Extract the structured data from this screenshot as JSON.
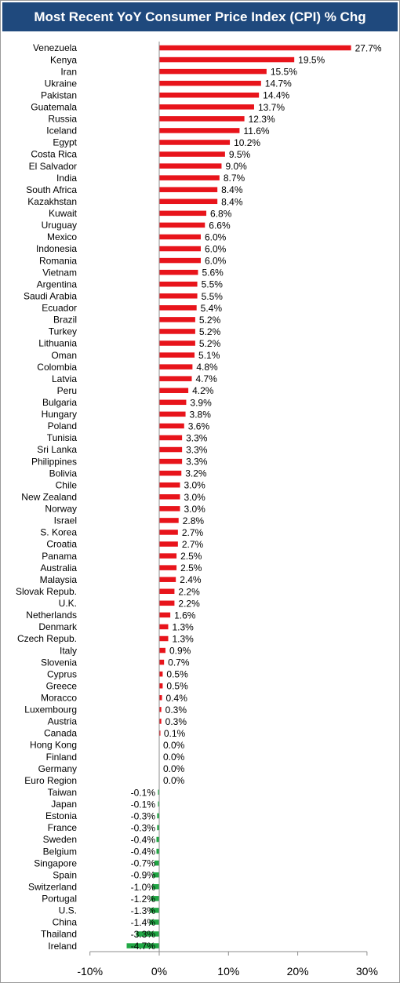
{
  "chart_data": {
    "type": "bar",
    "orientation": "horizontal",
    "title": "Most Recent YoY Consumer Price Index (CPI) % Chg",
    "xlim": [
      -10,
      30
    ],
    "xticks": [
      -10,
      0,
      10,
      20,
      30
    ],
    "xtick_labels": [
      "-10%",
      "0%",
      "10%",
      "20%",
      "30%"
    ],
    "grid": false,
    "colors": {
      "positive": "#e8141b",
      "negative": "#21a845",
      "title_bg": "#1f497d"
    },
    "categories": [
      "Venezuela",
      "Kenya",
      "Iran",
      "Ukraine",
      "Pakistan",
      "Guatemala",
      "Russia",
      "Iceland",
      "Egypt",
      "Costa Rica",
      "El Salvador",
      "India",
      "South Africa",
      "Kazakhstan",
      "Kuwait",
      "Uruguay",
      "Mexico",
      "Indonesia",
      "Romania",
      "Vietnam",
      "Argentina",
      "Saudi Arabia",
      "Ecuador",
      "Brazil",
      "Turkey",
      "Lithuania",
      "Oman",
      "Colombia",
      "Latvia",
      "Peru",
      "Bulgaria",
      "Hungary",
      "Poland",
      "Tunisia",
      "Sri Lanka",
      "Philippines",
      "Bolivia",
      "Chile",
      "New Zealand",
      "Norway",
      "Israel",
      "S. Korea",
      "Croatia",
      "Panama",
      "Australia",
      "Malaysia",
      "Slovak Repub.",
      "U.K.",
      "Netherlands",
      "Denmark",
      "Czech Repub.",
      "Italy",
      "Slovenia",
      "Cyprus",
      "Greece",
      "Moracco",
      "Luxembourg",
      "Austria",
      "Canada",
      "Hong Kong",
      "Finland",
      "Germany",
      "Euro Region",
      "Taiwan",
      "Japan",
      "Estonia",
      "France",
      "Sweden",
      "Belgium",
      "Singapore",
      "Spain",
      "Switzerland",
      "Portugal",
      "U.S.",
      "China",
      "Thailand",
      "Ireland"
    ],
    "values": [
      27.7,
      19.5,
      15.5,
      14.7,
      14.4,
      13.7,
      12.3,
      11.6,
      10.2,
      9.5,
      9.0,
      8.7,
      8.4,
      8.4,
      6.8,
      6.6,
      6.0,
      6.0,
      6.0,
      5.6,
      5.5,
      5.5,
      5.4,
      5.2,
      5.2,
      5.2,
      5.1,
      4.8,
      4.7,
      4.2,
      3.9,
      3.8,
      3.6,
      3.3,
      3.3,
      3.3,
      3.2,
      3.0,
      3.0,
      3.0,
      2.8,
      2.7,
      2.7,
      2.5,
      2.5,
      2.4,
      2.2,
      2.2,
      1.6,
      1.3,
      1.3,
      0.9,
      0.7,
      0.5,
      0.5,
      0.4,
      0.3,
      0.3,
      0.1,
      0.0,
      0.0,
      0.0,
      0.0,
      -0.1,
      -0.1,
      -0.3,
      -0.3,
      -0.4,
      -0.4,
      -0.7,
      -0.9,
      -1.0,
      -1.2,
      -1.3,
      -1.4,
      -3.3,
      -4.7
    ],
    "value_labels": [
      "27.7%",
      "19.5%",
      "15.5%",
      "14.7%",
      "14.4%",
      "13.7%",
      "12.3%",
      "11.6%",
      "10.2%",
      "9.5%",
      "9.0%",
      "8.7%",
      "8.4%",
      "8.4%",
      "6.8%",
      "6.6%",
      "6.0%",
      "6.0%",
      "6.0%",
      "5.6%",
      "5.5%",
      "5.5%",
      "5.4%",
      "5.2%",
      "5.2%",
      "5.2%",
      "5.1%",
      "4.8%",
      "4.7%",
      "4.2%",
      "3.9%",
      "3.8%",
      "3.6%",
      "3.3%",
      "3.3%",
      "3.3%",
      "3.2%",
      "3.0%",
      "3.0%",
      "3.0%",
      "2.8%",
      "2.7%",
      "2.7%",
      "2.5%",
      "2.5%",
      "2.4%",
      "2.2%",
      "2.2%",
      "1.6%",
      "1.3%",
      "1.3%",
      "0.9%",
      "0.7%",
      "0.5%",
      "0.5%",
      "0.4%",
      "0.3%",
      "0.3%",
      "0.1%",
      "0.0%",
      "0.0%",
      "0.0%",
      "0.0%",
      "-0.1%",
      "-0.1%",
      "-0.3%",
      "-0.3%",
      "-0.4%",
      "-0.4%",
      "-0.7%",
      "-0.9%",
      "-1.0%",
      "-1.2%",
      "-1.3%",
      "-1.4%",
      "-3.3%",
      "-4.7%"
    ]
  }
}
